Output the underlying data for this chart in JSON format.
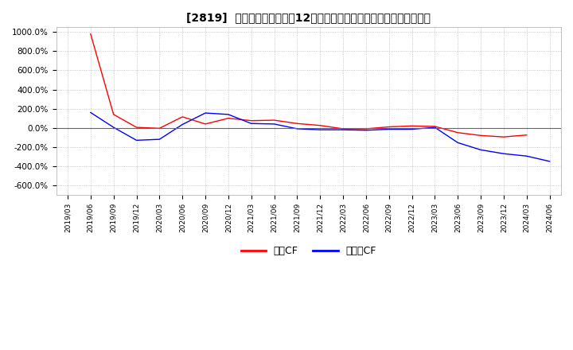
{
  "title": "[2819]  キャッシュフローの12か月移動合計の対前年同期増減率の推移",
  "legend_labels": [
    "営業CF",
    "フリーCF"
  ],
  "line_colors": [
    "#ff0000",
    "#0000ff"
  ],
  "ylim": [
    -700,
    1050
  ],
  "yticks": [
    -600,
    -400,
    -200,
    0,
    200,
    400,
    600,
    800,
    1000
  ],
  "background_color": "#ffffff",
  "dates": [
    "2019/03",
    "2019/06",
    "2019/09",
    "2019/12",
    "2020/03",
    "2020/06",
    "2020/09",
    "2020/12",
    "2021/03",
    "2021/06",
    "2021/09",
    "2021/12",
    "2022/03",
    "2022/06",
    "2022/09",
    "2022/12",
    "2023/03",
    "2023/06",
    "2023/09",
    "2023/12",
    "2024/03",
    "2024/06"
  ],
  "operating_cf": [
    null,
    980,
    140,
    5,
    -5,
    115,
    40,
    100,
    75,
    80,
    45,
    25,
    -10,
    -10,
    10,
    20,
    15,
    -50,
    -80,
    -95,
    -75,
    null
  ],
  "free_cf": [
    null,
    160,
    5,
    -130,
    -120,
    35,
    155,
    140,
    45,
    40,
    -10,
    -20,
    -20,
    -25,
    -15,
    -15,
    5,
    -155,
    -230,
    -270,
    -295,
    -350
  ]
}
